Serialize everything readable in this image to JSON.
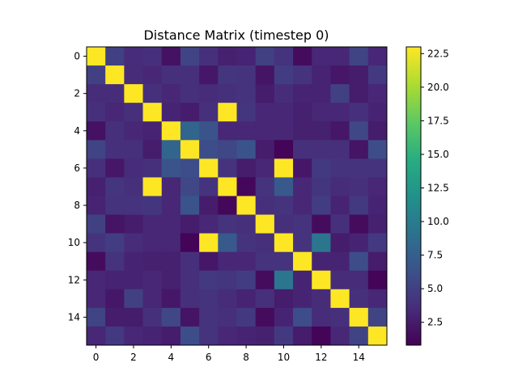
{
  "chart_data": {
    "type": "heatmap",
    "title": "Distance Matrix (timestep 0)",
    "xlabel": "",
    "ylabel": "",
    "colormap": "viridis",
    "vmin": 0.8,
    "vmax": 23.0,
    "x_ticks": [
      "0",
      "2",
      "4",
      "6",
      "8",
      "10",
      "12",
      "14"
    ],
    "y_ticks": [
      "0",
      "2",
      "4",
      "6",
      "8",
      "10",
      "12",
      "14"
    ],
    "colorbar_ticks": [
      "2.5",
      "5.0",
      "7.5",
      "10.0",
      "12.5",
      "15.0",
      "17.5",
      "20.0",
      "22.5"
    ],
    "values": [
      [
        23.0,
        5.0,
        3.5,
        3.8,
        1.8,
        5.2,
        3.8,
        2.8,
        3.0,
        5.0,
        4.0,
        1.5,
        3.2,
        3.2,
        5.2,
        3.2
      ],
      [
        5.0,
        23.0,
        3.5,
        3.2,
        3.8,
        3.8,
        2.2,
        4.2,
        4.0,
        2.0,
        4.8,
        4.0,
        3.0,
        2.2,
        2.5,
        4.5
      ],
      [
        3.5,
        3.5,
        23.0,
        3.8,
        3.2,
        3.8,
        3.5,
        3.8,
        4.0,
        2.5,
        3.5,
        3.0,
        3.0,
        5.0,
        2.5,
        3.2
      ],
      [
        3.8,
        3.2,
        3.8,
        23.0,
        3.0,
        2.5,
        3.8,
        23.0,
        4.2,
        3.2,
        3.2,
        2.8,
        3.2,
        3.2,
        3.8,
        3.0
      ],
      [
        1.8,
        3.8,
        3.2,
        3.0,
        23.0,
        8.0,
        6.5,
        3.2,
        3.2,
        3.2,
        3.2,
        2.8,
        2.8,
        2.2,
        5.5,
        2.5
      ],
      [
        5.2,
        3.8,
        3.8,
        2.5,
        8.0,
        23.0,
        6.0,
        5.5,
        6.5,
        2.5,
        1.0,
        3.8,
        3.8,
        3.8,
        2.0,
        6.0
      ],
      [
        3.8,
        2.2,
        3.5,
        3.8,
        6.5,
        6.0,
        23.0,
        4.0,
        2.5,
        3.2,
        23.0,
        2.2,
        4.5,
        4.0,
        4.0,
        4.0
      ],
      [
        2.8,
        4.2,
        3.8,
        23.0,
        3.2,
        5.5,
        4.0,
        23.0,
        1.2,
        4.0,
        7.0,
        3.2,
        4.2,
        3.5,
        3.8,
        3.2
      ],
      [
        3.0,
        4.0,
        4.0,
        4.2,
        3.2,
        6.5,
        2.5,
        1.2,
        23.0,
        3.8,
        4.0,
        3.2,
        4.8,
        3.0,
        4.5,
        3.0
      ],
      [
        5.0,
        2.0,
        2.5,
        3.2,
        3.2,
        2.5,
        3.2,
        4.0,
        3.8,
        23.0,
        3.8,
        4.0,
        1.5,
        3.8,
        1.5,
        2.8
      ],
      [
        4.0,
        4.8,
        3.5,
        3.2,
        3.2,
        1.0,
        23.0,
        7.0,
        4.0,
        3.8,
        23.0,
        4.0,
        9.5,
        2.5,
        3.0,
        4.5
      ],
      [
        1.5,
        4.0,
        3.0,
        2.8,
        2.8,
        3.8,
        2.2,
        3.2,
        3.2,
        4.0,
        4.0,
        23.0,
        3.0,
        3.0,
        6.0,
        2.5
      ],
      [
        3.2,
        3.0,
        3.0,
        3.2,
        2.8,
        3.8,
        4.5,
        4.2,
        4.8,
        1.5,
        9.5,
        3.0,
        23.0,
        3.5,
        3.5,
        1.0
      ],
      [
        3.2,
        2.2,
        5.0,
        3.2,
        2.2,
        3.8,
        4.0,
        3.5,
        3.0,
        3.8,
        2.5,
        3.0,
        3.5,
        23.0,
        3.8,
        3.2
      ],
      [
        5.2,
        2.5,
        2.5,
        3.8,
        5.5,
        2.0,
        4.0,
        3.8,
        4.5,
        1.5,
        3.0,
        6.0,
        3.5,
        3.8,
        23.0,
        5.2
      ],
      [
        3.2,
        4.5,
        3.2,
        3.0,
        2.5,
        6.0,
        4.0,
        3.2,
        3.0,
        2.8,
        4.5,
        2.5,
        1.0,
        3.2,
        5.2,
        23.0
      ]
    ]
  }
}
